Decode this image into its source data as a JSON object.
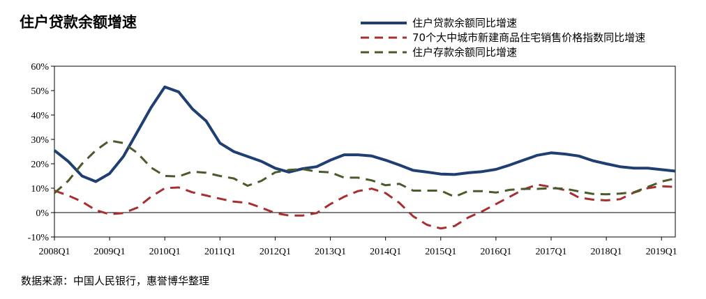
{
  "title": "住户贷款余额增速",
  "source": "数据来源：中国人民银行，惠誉博华整理",
  "chart_data": {
    "type": "line",
    "title": "住户贷款余额增速",
    "ylim": [
      -0.1,
      0.6
    ],
    "xlim": [
      0,
      45
    ],
    "yticks": [
      {
        "value": 0.6,
        "label": "60%"
      },
      {
        "value": 0.5,
        "label": "50%"
      },
      {
        "value": 0.4,
        "label": "40%"
      },
      {
        "value": 0.3,
        "label": "30%"
      },
      {
        "value": 0.2,
        "label": "20%"
      },
      {
        "value": 0.1,
        "label": "10%"
      },
      {
        "value": 0.0,
        "label": "0%"
      },
      {
        "value": -0.1,
        "label": "-10%"
      }
    ],
    "xticks": [
      {
        "value": 0,
        "label": "2008Q1"
      },
      {
        "value": 4,
        "label": "2009Q1"
      },
      {
        "value": 8,
        "label": "2010Q1"
      },
      {
        "value": 12,
        "label": "2011Q1"
      },
      {
        "value": 16,
        "label": "2012Q1"
      },
      {
        "value": 20,
        "label": "2013Q1"
      },
      {
        "value": 24,
        "label": "2014Q1"
      },
      {
        "value": 28,
        "label": "2015Q1"
      },
      {
        "value": 32,
        "label": "2016Q1"
      },
      {
        "value": 36,
        "label": "2017Q1"
      },
      {
        "value": 40,
        "label": "2018Q1"
      },
      {
        "value": 44,
        "label": "2019Q1"
      }
    ],
    "series": [
      {
        "name": "住户贷款余额同比增速",
        "color": "#1f3f73",
        "dash": "solid",
        "x": [
          0,
          1,
          2,
          3,
          4,
          5,
          6,
          7,
          8,
          9,
          10,
          11,
          12,
          13,
          14,
          15,
          16,
          17,
          18,
          19,
          20,
          21,
          22,
          23,
          24,
          25,
          26,
          27,
          28,
          29,
          30,
          31,
          32,
          33,
          34,
          35,
          36,
          37,
          38,
          39,
          40,
          41,
          42,
          43,
          44,
          45
        ],
        "values": [
          0.255,
          0.21,
          0.15,
          0.127,
          0.16,
          0.23,
          0.33,
          0.43,
          0.515,
          0.495,
          0.425,
          0.375,
          0.285,
          0.25,
          0.23,
          0.21,
          0.182,
          0.166,
          0.18,
          0.188,
          0.215,
          0.237,
          0.237,
          0.232,
          0.215,
          0.195,
          0.173,
          0.166,
          0.158,
          0.156,
          0.163,
          0.168,
          0.177,
          0.195,
          0.215,
          0.235,
          0.245,
          0.24,
          0.232,
          0.213,
          0.2,
          0.188,
          0.182,
          0.182,
          0.176,
          0.17
        ]
      },
      {
        "name": "70个大中城市新建商品住宅销售价格指数同比增速",
        "color": "#a82f2f",
        "dash": "dash",
        "x": [
          0,
          1,
          2,
          3,
          4,
          5,
          6,
          7,
          8,
          9,
          10,
          11,
          12,
          13,
          14,
          15,
          16,
          17,
          18,
          19,
          20,
          21,
          22,
          23,
          24,
          25,
          26,
          27,
          28,
          29,
          30,
          31,
          32,
          33,
          34,
          35,
          36,
          37,
          38,
          39,
          40,
          41,
          42,
          43,
          44,
          45
        ],
        "values": [
          0.09,
          0.07,
          0.045,
          0.01,
          -0.007,
          -0.002,
          0.02,
          0.065,
          0.1,
          0.103,
          0.083,
          0.07,
          0.057,
          0.045,
          0.04,
          0.02,
          -0.002,
          -0.012,
          -0.012,
          -0.002,
          0.035,
          0.065,
          0.088,
          0.098,
          0.08,
          0.04,
          -0.015,
          -0.05,
          -0.065,
          -0.055,
          -0.02,
          0.005,
          0.035,
          0.065,
          0.095,
          0.115,
          0.105,
          0.092,
          0.062,
          0.053,
          0.05,
          0.055,
          0.082,
          0.1,
          0.108,
          0.105
        ]
      },
      {
        "name": "住户存款余额同比增速",
        "color": "#4a5a2a",
        "dash": "dash",
        "x": [
          0,
          1,
          2,
          3,
          4,
          5,
          6,
          7,
          8,
          9,
          10,
          11,
          12,
          13,
          14,
          15,
          16,
          17,
          18,
          19,
          20,
          21,
          22,
          23,
          24,
          25,
          26,
          27,
          28,
          29,
          30,
          31,
          32,
          33,
          34,
          35,
          36,
          37,
          38,
          39,
          40,
          41,
          42,
          43,
          44,
          45
        ],
        "values": [
          0.08,
          0.13,
          0.2,
          0.255,
          0.295,
          0.285,
          0.245,
          0.185,
          0.15,
          0.148,
          0.168,
          0.163,
          0.15,
          0.14,
          0.11,
          0.13,
          0.165,
          0.175,
          0.178,
          0.168,
          0.165,
          0.143,
          0.143,
          0.132,
          0.112,
          0.118,
          0.09,
          0.09,
          0.09,
          0.065,
          0.088,
          0.088,
          0.082,
          0.093,
          0.097,
          0.097,
          0.1,
          0.098,
          0.087,
          0.077,
          0.075,
          0.078,
          0.083,
          0.105,
          0.127,
          0.14
        ]
      }
    ]
  }
}
